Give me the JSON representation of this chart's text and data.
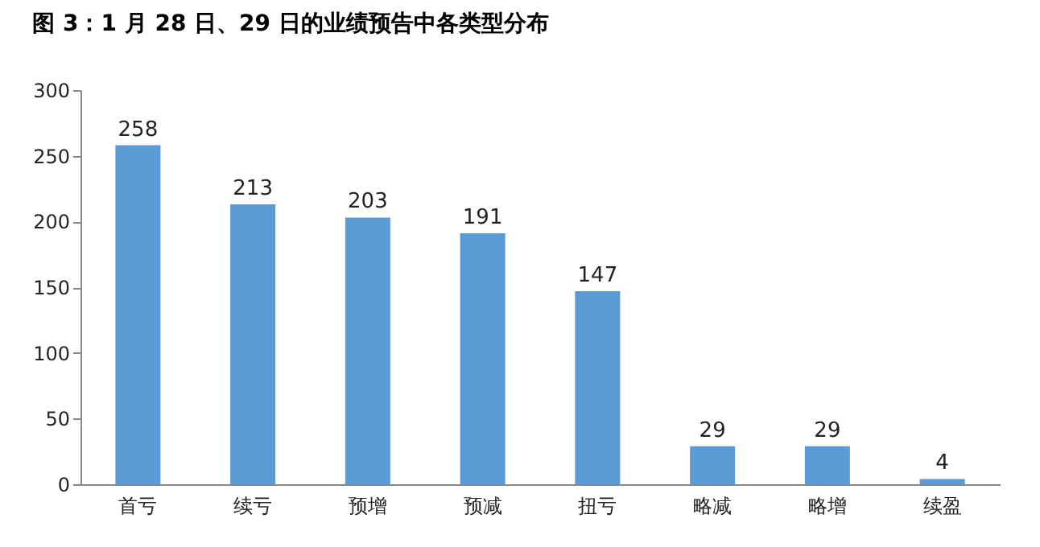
{
  "chart_data": {
    "type": "bar",
    "title": "图 3：1 月 28 日、29 日的业绩预告中各类型分布",
    "categories": [
      "首亏",
      "续亏",
      "预增",
      "预减",
      "扭亏",
      "略减",
      "略增",
      "续盈"
    ],
    "values": [
      258,
      213,
      203,
      191,
      147,
      29,
      29,
      4
    ],
    "color": "#5b9bd5",
    "ylim": [
      0,
      300
    ],
    "yticks": [
      0,
      50,
      100,
      150,
      200,
      250,
      300
    ],
    "grid": false,
    "data_labels": true
  }
}
